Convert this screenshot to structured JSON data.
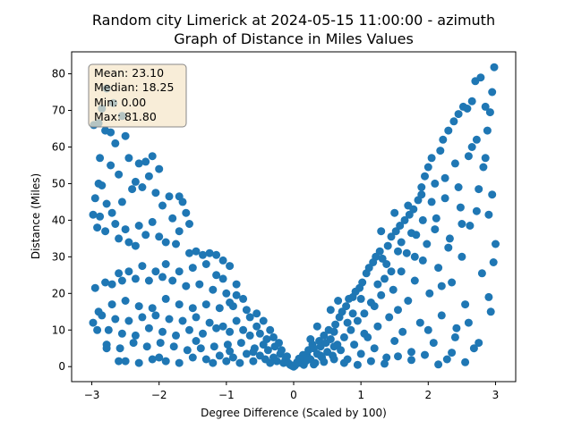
{
  "chart_data": {
    "type": "scatter",
    "title_line1": "Random city Limerick at 2024-05-15 11:00:00  - azimuth",
    "title_line2": "Graph of Distance in Miles Values",
    "xlabel": "Degree Difference (Scaled by 100)",
    "ylabel": "Distance (Miles)",
    "xlim": [
      -3.3,
      3.3
    ],
    "ylim": [
      -4.1,
      86.0
    ],
    "xticks": [
      -3,
      -2,
      -1,
      0,
      1,
      2,
      3
    ],
    "yticks": [
      0,
      10,
      20,
      30,
      40,
      50,
      60,
      70,
      80
    ],
    "point_color": "#1f77b4",
    "stats": {
      "mean": "Mean: 23.10",
      "median": "Median: 18.25",
      "min": "Min: 0.00",
      "max": "Max: 81.80"
    },
    "stats_box_color": "#f5e5c8",
    "points": [
      [
        -2.97,
        66.0
      ],
      [
        -2.9,
        66.5
      ],
      [
        -2.85,
        70.5
      ],
      [
        -2.78,
        76.0
      ],
      [
        -2.8,
        64.5
      ],
      [
        -2.72,
        64.0
      ],
      [
        -2.65,
        61.0
      ],
      [
        -2.5,
        63.0
      ],
      [
        -2.55,
        68.5
      ],
      [
        -2.68,
        72.0
      ],
      [
        -2.88,
        57.0
      ],
      [
        -2.72,
        55.0
      ],
      [
        -2.6,
        52.5
      ],
      [
        -2.45,
        57.0
      ],
      [
        -2.3,
        55.5
      ],
      [
        -2.2,
        56.0
      ],
      [
        -2.1,
        57.5
      ],
      [
        -2.0,
        54.0
      ],
      [
        -2.15,
        52.0
      ],
      [
        -2.35,
        50.5
      ],
      [
        -2.9,
        50.0
      ],
      [
        -2.85,
        49.5
      ],
      [
        -2.95,
        46.0
      ],
      [
        -2.78,
        44.5
      ],
      [
        -2.98,
        41.5
      ],
      [
        -2.88,
        41.0
      ],
      [
        -2.7,
        42.0
      ],
      [
        -2.55,
        45.0
      ],
      [
        -2.4,
        48.5
      ],
      [
        -2.25,
        49.0
      ],
      [
        -2.05,
        47.5
      ],
      [
        -1.95,
        44.0
      ],
      [
        -1.85,
        46.5
      ],
      [
        -1.7,
        46.5
      ],
      [
        -1.65,
        45.0
      ],
      [
        -1.8,
        40.5
      ],
      [
        -1.6,
        42.0
      ],
      [
        -1.55,
        39.0
      ],
      [
        -1.7,
        37.0
      ],
      [
        -2.1,
        39.5
      ],
      [
        -2.3,
        38.5
      ],
      [
        -2.5,
        37.5
      ],
      [
        -2.65,
        39.0
      ],
      [
        -2.8,
        37.0
      ],
      [
        -2.92,
        38.0
      ],
      [
        -2.6,
        35.0
      ],
      [
        -2.45,
        34.0
      ],
      [
        -2.35,
        33.0
      ],
      [
        -2.2,
        36.0
      ],
      [
        -2.0,
        35.5
      ],
      [
        -1.9,
        34.0
      ],
      [
        -1.75,
        33.5
      ],
      [
        -1.55,
        31.0
      ],
      [
        -1.45,
        31.5
      ],
      [
        -1.35,
        30.5
      ],
      [
        -1.25,
        31.0
      ],
      [
        -1.15,
        30.5
      ],
      [
        -1.05,
        29.0
      ],
      [
        -0.95,
        27.5
      ],
      [
        -1.3,
        28.0
      ],
      [
        -1.5,
        27.0
      ],
      [
        -1.7,
        26.0
      ],
      [
        -1.9,
        28.0
      ],
      [
        -2.05,
        26.0
      ],
      [
        -2.25,
        27.5
      ],
      [
        -2.45,
        26.0
      ],
      [
        -2.6,
        25.5
      ],
      [
        -2.8,
        23.0
      ],
      [
        -2.95,
        21.5
      ],
      [
        -2.7,
        22.5
      ],
      [
        -2.55,
        23.5
      ],
      [
        -2.35,
        24.0
      ],
      [
        -2.15,
        23.5
      ],
      [
        -1.95,
        24.5
      ],
      [
        -1.8,
        23.5
      ],
      [
        -1.6,
        22.0
      ],
      [
        -1.4,
        22.5
      ],
      [
        -1.2,
        21.0
      ],
      [
        -1.0,
        20.0
      ],
      [
        -0.85,
        19.5
      ],
      [
        -0.75,
        18.5
      ],
      [
        -0.9,
        16.5
      ],
      [
        -1.1,
        16.0
      ],
      [
        -1.3,
        17.0
      ],
      [
        -1.5,
        16.0
      ],
      [
        -1.7,
        17.0
      ],
      [
        -1.9,
        18.5
      ],
      [
        -2.1,
        16.0
      ],
      [
        -2.3,
        16.5
      ],
      [
        -2.5,
        18.0
      ],
      [
        -2.7,
        17.0
      ],
      [
        -2.9,
        15.0
      ],
      [
        -2.85,
        14.0
      ],
      [
        -2.65,
        13.0
      ],
      [
        -2.45,
        12.5
      ],
      [
        -2.25,
        13.5
      ],
      [
        -2.05,
        14.0
      ],
      [
        -1.85,
        13.0
      ],
      [
        -1.65,
        12.5
      ],
      [
        -1.45,
        13.5
      ],
      [
        -1.25,
        12.0
      ],
      [
        -1.05,
        11.0
      ],
      [
        -0.85,
        12.5
      ],
      [
        -0.65,
        13.5
      ],
      [
        -0.55,
        11.0
      ],
      [
        -0.75,
        10.0
      ],
      [
        -0.95,
        9.5
      ],
      [
        -1.15,
        10.5
      ],
      [
        -1.35,
        9.0
      ],
      [
        -1.55,
        10.0
      ],
      [
        -1.75,
        8.5
      ],
      [
        -1.95,
        9.5
      ],
      [
        -2.15,
        10.5
      ],
      [
        -2.35,
        8.5
      ],
      [
        -2.55,
        9.0
      ],
      [
        -2.75,
        10.0
      ],
      [
        -2.98,
        12.0
      ],
      [
        -2.92,
        10.0
      ],
      [
        -2.78,
        6.0
      ],
      [
        -2.58,
        5.0
      ],
      [
        -2.38,
        6.5
      ],
      [
        -2.18,
        5.5
      ],
      [
        -1.98,
        6.5
      ],
      [
        -1.78,
        5.5
      ],
      [
        -1.58,
        4.5
      ],
      [
        -1.38,
        5.0
      ],
      [
        -1.18,
        5.5
      ],
      [
        -0.98,
        6.0
      ],
      [
        -0.78,
        6.5
      ],
      [
        -0.58,
        5.0
      ],
      [
        -0.45,
        6.0
      ],
      [
        -0.38,
        4.5
      ],
      [
        -0.5,
        3.0
      ],
      [
        -0.7,
        3.5
      ],
      [
        -0.9,
        2.5
      ],
      [
        -1.1,
        3.0
      ],
      [
        -1.3,
        2.0
      ],
      [
        -1.5,
        2.5
      ],
      [
        -1.7,
        1.0
      ],
      [
        -1.9,
        1.5
      ],
      [
        -2.1,
        2.0
      ],
      [
        -2.3,
        1.0
      ],
      [
        -2.5,
        1.5
      ],
      [
        -2.78,
        5.0
      ],
      [
        -2.6,
        1.5
      ],
      [
        -1.2,
        1.0
      ],
      [
        -0.3,
        2.5
      ],
      [
        -0.25,
        1.5
      ],
      [
        -0.2,
        3.5
      ],
      [
        -0.15,
        1.0
      ],
      [
        -0.12,
        2.0
      ],
      [
        -0.08,
        1.0
      ],
      [
        -0.05,
        0.5
      ],
      [
        -0.02,
        0.2
      ],
      [
        0.0,
        0.0
      ],
      [
        0.02,
        0.3
      ],
      [
        0.04,
        0.8
      ],
      [
        0.07,
        1.5
      ],
      [
        -0.35,
        1.0
      ],
      [
        -0.42,
        2.0
      ],
      [
        -0.6,
        1.5
      ],
      [
        -0.8,
        1.0
      ],
      [
        -1.0,
        1.5
      ],
      [
        -0.65,
        8.5
      ],
      [
        -0.5,
        9.0
      ],
      [
        -0.4,
        7.5
      ],
      [
        -0.35,
        10.0
      ],
      [
        -0.55,
        14.5
      ],
      [
        -0.7,
        15.5
      ],
      [
        -0.85,
        22.5
      ],
      [
        -1.05,
        24.0
      ],
      [
        -1.15,
        25.0
      ],
      [
        -0.95,
        17.5
      ],
      [
        -0.45,
        12.5
      ],
      [
        -0.3,
        8.0
      ],
      [
        -0.28,
        5.5
      ],
      [
        -0.18,
        4.5
      ],
      [
        -0.22,
        6.5
      ],
      [
        0.1,
        1.0
      ],
      [
        0.12,
        2.5
      ],
      [
        0.15,
        0.5
      ],
      [
        0.18,
        1.5
      ],
      [
        0.2,
        3.0
      ],
      [
        0.22,
        4.5
      ],
      [
        0.25,
        2.0
      ],
      [
        0.28,
        6.0
      ],
      [
        0.3,
        5.0
      ],
      [
        0.32,
        1.0
      ],
      [
        0.35,
        3.5
      ],
      [
        0.38,
        7.0
      ],
      [
        0.4,
        5.5
      ],
      [
        0.42,
        2.5
      ],
      [
        0.45,
        8.5
      ],
      [
        0.48,
        6.5
      ],
      [
        0.5,
        4.0
      ],
      [
        0.52,
        10.0
      ],
      [
        0.55,
        7.5
      ],
      [
        0.58,
        3.0
      ],
      [
        0.6,
        9.5
      ],
      [
        0.62,
        11.5
      ],
      [
        0.65,
        6.0
      ],
      [
        0.68,
        13.5
      ],
      [
        0.7,
        4.5
      ],
      [
        0.72,
        15.0
      ],
      [
        0.75,
        8.0
      ],
      [
        0.78,
        16.5
      ],
      [
        0.8,
        2.0
      ],
      [
        0.82,
        18.5
      ],
      [
        0.85,
        10.0
      ],
      [
        0.88,
        19.0
      ],
      [
        0.9,
        6.0
      ],
      [
        0.92,
        20.5
      ],
      [
        0.95,
        12.5
      ],
      [
        0.98,
        21.5
      ],
      [
        1.0,
        3.5
      ],
      [
        1.02,
        23.0
      ],
      [
        1.05,
        14.5
      ],
      [
        1.08,
        25.5
      ],
      [
        1.1,
        8.0
      ],
      [
        1.12,
        27.0
      ],
      [
        1.15,
        17.5
      ],
      [
        1.18,
        28.5
      ],
      [
        1.2,
        5.0
      ],
      [
        1.22,
        30.0
      ],
      [
        1.25,
        11.0
      ],
      [
        1.28,
        31.5
      ],
      [
        1.3,
        19.5
      ],
      [
        1.32,
        29.5
      ],
      [
        1.35,
        24.0
      ],
      [
        1.38,
        2.5
      ],
      [
        1.4,
        33.0
      ],
      [
        1.42,
        13.5
      ],
      [
        1.45,
        35.5
      ],
      [
        1.48,
        21.0
      ],
      [
        1.5,
        7.0
      ],
      [
        1.52,
        37.0
      ],
      [
        1.55,
        15.5
      ],
      [
        1.58,
        38.5
      ],
      [
        1.6,
        26.0
      ],
      [
        1.62,
        9.5
      ],
      [
        1.65,
        40.0
      ],
      [
        1.68,
        31.0
      ],
      [
        1.7,
        18.0
      ],
      [
        1.72,
        41.5
      ],
      [
        1.75,
        4.0
      ],
      [
        1.78,
        43.0
      ],
      [
        1.8,
        23.5
      ],
      [
        1.82,
        36.0
      ],
      [
        1.85,
        45.5
      ],
      [
        1.88,
        12.0
      ],
      [
        1.9,
        47.0
      ],
      [
        1.92,
        29.0
      ],
      [
        1.95,
        52.0
      ],
      [
        1.98,
        33.5
      ],
      [
        2.0,
        54.5
      ],
      [
        2.02,
        20.0
      ],
      [
        2.05,
        57.0
      ],
      [
        2.08,
        6.5
      ],
      [
        2.1,
        50.0
      ],
      [
        2.12,
        40.5
      ],
      [
        2.15,
        27.0
      ],
      [
        2.18,
        59.0
      ],
      [
        2.2,
        14.0
      ],
      [
        2.22,
        62.0
      ],
      [
        2.25,
        46.0
      ],
      [
        2.28,
        2.0
      ],
      [
        2.3,
        64.5
      ],
      [
        2.32,
        35.0
      ],
      [
        2.35,
        23.0
      ],
      [
        2.38,
        67.0
      ],
      [
        2.4,
        55.5
      ],
      [
        2.42,
        10.5
      ],
      [
        2.45,
        69.0
      ],
      [
        2.48,
        43.5
      ],
      [
        2.5,
        30.0
      ],
      [
        2.52,
        71.0
      ],
      [
        2.55,
        17.0
      ],
      [
        2.58,
        70.5
      ],
      [
        2.6,
        57.5
      ],
      [
        2.62,
        38.5
      ],
      [
        2.65,
        72.5
      ],
      [
        2.68,
        5.0
      ],
      [
        2.7,
        78.0
      ],
      [
        2.72,
        62.0
      ],
      [
        2.75,
        48.5
      ],
      [
        2.78,
        79.0
      ],
      [
        2.8,
        25.5
      ],
      [
        2.82,
        54.5
      ],
      [
        2.85,
        71.0
      ],
      [
        2.88,
        64.5
      ],
      [
        2.9,
        41.5
      ],
      [
        2.92,
        69.5
      ],
      [
        2.95,
        75.0
      ],
      [
        2.98,
        81.8
      ],
      [
        3.0,
        33.5
      ],
      [
        2.97,
        28.5
      ],
      [
        2.93,
        15.0
      ],
      [
        2.9,
        19.0
      ],
      [
        2.6,
        12.0
      ],
      [
        2.4,
        8.0
      ],
      [
        2.2,
        22.0
      ],
      [
        2.0,
        10.0
      ],
      [
        1.8,
        30.0
      ],
      [
        1.6,
        34.0
      ],
      [
        1.45,
        26.0
      ],
      [
        1.25,
        22.5
      ],
      [
        1.05,
        9.0
      ],
      [
        0.88,
        14.5
      ],
      [
        0.66,
        18.0
      ],
      [
        0.55,
        15.5
      ],
      [
        0.35,
        11.0
      ],
      [
        0.25,
        7.5
      ],
      [
        0.6,
        2.0
      ],
      [
        0.75,
        1.0
      ],
      [
        0.95,
        0.5
      ],
      [
        1.15,
        1.5
      ],
      [
        1.35,
        0.8
      ],
      [
        1.55,
        2.8
      ],
      [
        1.75,
        1.8
      ],
      [
        1.95,
        3.2
      ],
      [
        2.15,
        0.6
      ],
      [
        2.35,
        3.8
      ],
      [
        2.55,
        1.2
      ],
      [
        2.75,
        6.5
      ],
      [
        1.3,
        37.0
      ],
      [
        1.5,
        42.0
      ],
      [
        1.7,
        44.0
      ],
      [
        1.9,
        49.0
      ],
      [
        2.05,
        45.0
      ],
      [
        2.25,
        51.5
      ],
      [
        2.45,
        49.0
      ],
      [
        2.65,
        60.0
      ],
      [
        2.85,
        57.0
      ],
      [
        2.95,
        47.0
      ],
      [
        2.72,
        42.5
      ],
      [
        2.5,
        39.0
      ],
      [
        2.3,
        32.5
      ],
      [
        2.1,
        37.5
      ],
      [
        1.92,
        40.0
      ],
      [
        1.75,
        36.5
      ],
      [
        1.55,
        31.5
      ],
      [
        1.38,
        28.0
      ],
      [
        1.2,
        16.5
      ],
      [
        1.0,
        18.5
      ],
      [
        0.8,
        12.0
      ],
      [
        0.6,
        5.5
      ],
      [
        0.4,
        3.0
      ],
      [
        0.2,
        1.8
      ],
      [
        0.14,
        3.2
      ],
      [
        0.08,
        2.2
      ],
      [
        0.05,
        1.2
      ],
      [
        0.3,
        0.6
      ],
      [
        0.45,
        1.3
      ],
      [
        -0.1,
        2.8
      ],
      [
        -0.6,
        4.0
      ],
      [
        -0.95,
        4.2
      ],
      [
        -1.45,
        7.0
      ],
      [
        -2.0,
        2.5
      ]
    ]
  }
}
